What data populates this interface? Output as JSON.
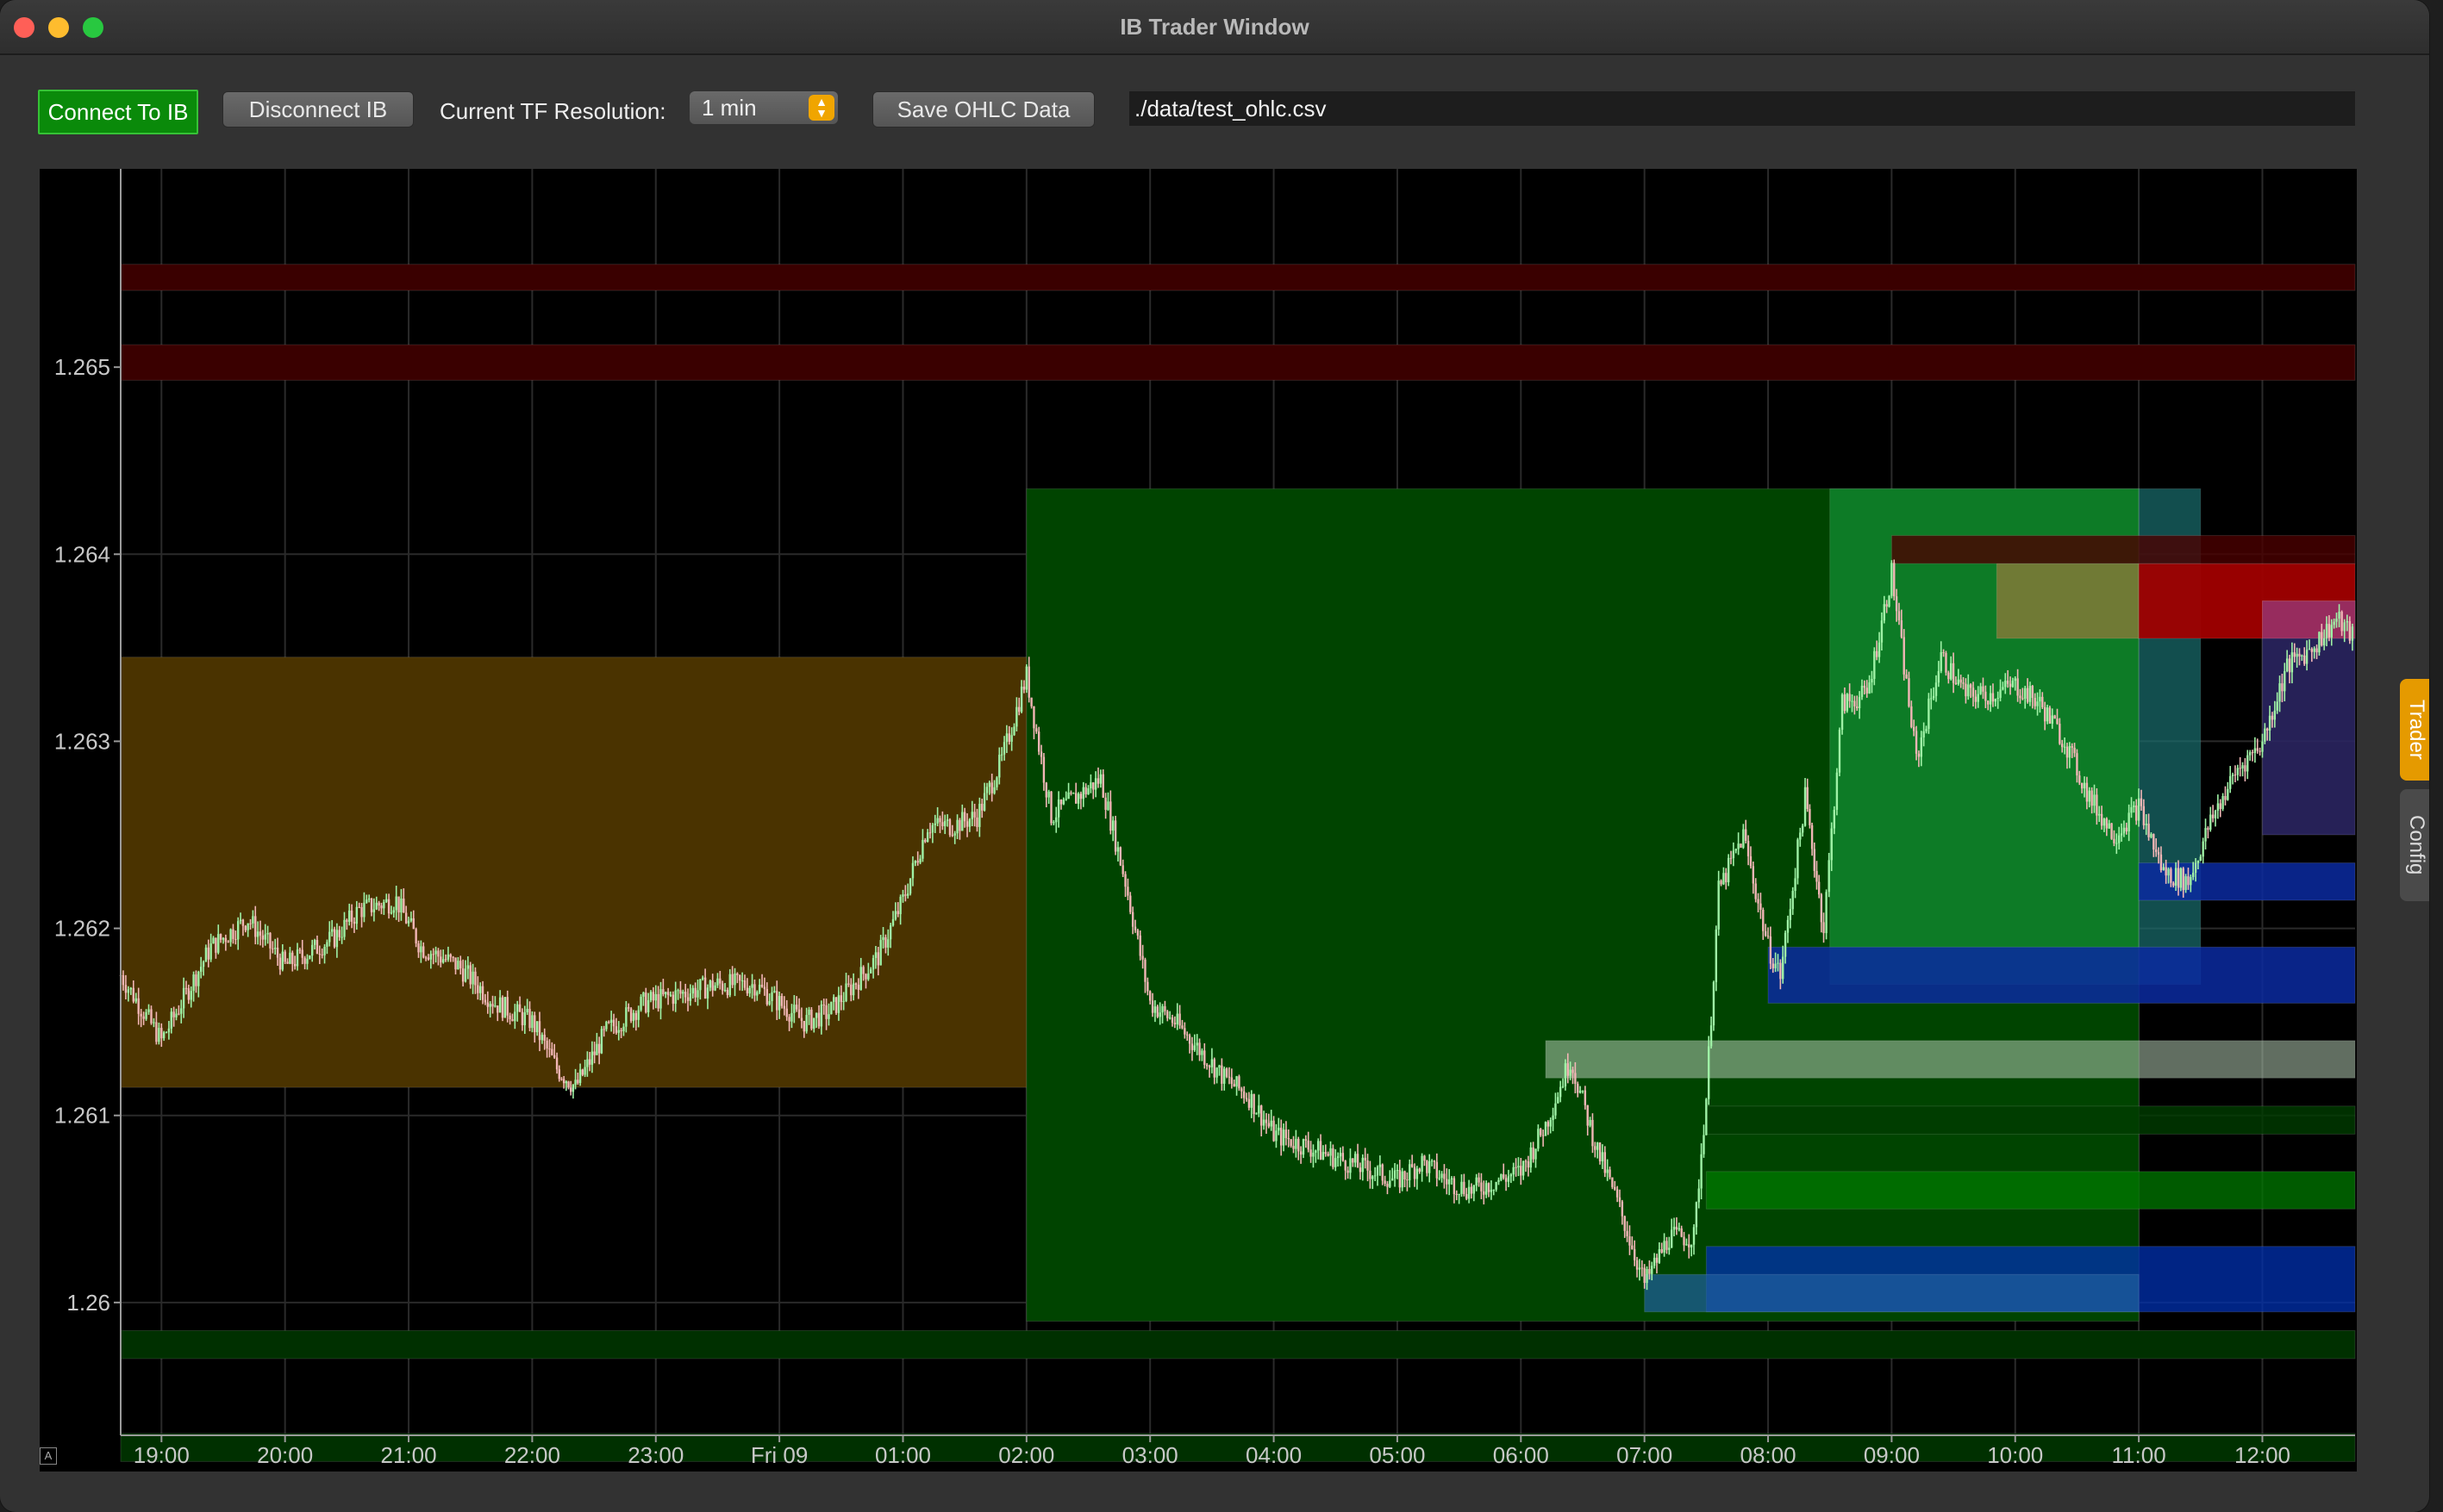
{
  "window": {
    "title": "IB Trader Window"
  },
  "toolbar": {
    "connect_label": "Connect To IB",
    "disconnect_label": "Disconnect IB",
    "tf_label": "Current TF Resolution:",
    "tf_value": "1 min",
    "save_label": "Save OHLC Data",
    "file_path": "./data/test_ohlc.csv"
  },
  "side_tabs": {
    "trader": "Trader",
    "config": "Config"
  },
  "auto_range_glyph": "A",
  "colors": {
    "connect": "#0a8a0a",
    "accent": "#f0a500",
    "candle_up": "#9ff2a6",
    "candle_down": "#f2b6b6"
  },
  "chart_data": {
    "type": "candlestick",
    "x_tick_labels": [
      "19:00",
      "20:00",
      "21:00",
      "22:00",
      "23:00",
      "Fri 09",
      "01:00",
      "02:00",
      "03:00",
      "04:00",
      "05:00",
      "06:00",
      "07:00",
      "08:00",
      "09:00",
      "10:00",
      "11:00",
      "12:00"
    ],
    "x_tick_hours": [
      19,
      20,
      21,
      22,
      23,
      24,
      25,
      26,
      27,
      28,
      29,
      30,
      31,
      32,
      33,
      34,
      35,
      36
    ],
    "x_range_hours": [
      18.67,
      36.75
    ],
    "y_ticks": [
      1.265,
      1.264,
      1.263,
      1.262,
      1.261,
      1.26
    ],
    "y_tick_labels": [
      "1.265",
      "1.264",
      "1.263",
      "1.262",
      "1.261",
      "1.26"
    ],
    "y_range": [
      1.25929,
      1.26606
    ],
    "grid": true,
    "price_path": [
      [
        18.67,
        1.26175
      ],
      [
        19.0,
        1.2614
      ],
      [
        19.4,
        1.2619
      ],
      [
        19.7,
        1.26205
      ],
      [
        20.0,
        1.2618
      ],
      [
        20.4,
        1.26195
      ],
      [
        20.6,
        1.2621
      ],
      [
        20.9,
        1.26215
      ],
      [
        21.1,
        1.2619
      ],
      [
        21.4,
        1.2618
      ],
      [
        21.7,
        1.2616
      ],
      [
        22.0,
        1.2615
      ],
      [
        22.2,
        1.26125
      ],
      [
        22.35,
        1.26115
      ],
      [
        22.6,
        1.26145
      ],
      [
        22.9,
        1.2616
      ],
      [
        23.2,
        1.26165
      ],
      [
        23.5,
        1.2617
      ],
      [
        23.8,
        1.2617
      ],
      [
        24.0,
        1.2616
      ],
      [
        24.2,
        1.2615
      ],
      [
        24.4,
        1.26155
      ],
      [
        24.6,
        1.2617
      ],
      [
        24.8,
        1.26185
      ],
      [
        25.0,
        1.26215
      ],
      [
        25.2,
        1.26255
      ],
      [
        25.4,
        1.26255
      ],
      [
        25.6,
        1.2626
      ],
      [
        25.8,
        1.2629
      ],
      [
        26.0,
        1.26335
      ],
      [
        26.2,
        1.2626
      ],
      [
        26.4,
        1.2627
      ],
      [
        26.6,
        1.2628
      ],
      [
        26.8,
        1.26225
      ],
      [
        27.0,
        1.2616
      ],
      [
        27.2,
        1.2615
      ],
      [
        27.4,
        1.26135
      ],
      [
        27.6,
        1.2612
      ],
      [
        27.8,
        1.2611
      ],
      [
        28.0,
        1.2609
      ],
      [
        28.2,
        1.26085
      ],
      [
        28.4,
        1.2608
      ],
      [
        28.6,
        1.26075
      ],
      [
        28.8,
        1.2607
      ],
      [
        29.0,
        1.26065
      ],
      [
        29.2,
        1.26075
      ],
      [
        29.4,
        1.26065
      ],
      [
        29.6,
        1.2606
      ],
      [
        29.8,
        1.26065
      ],
      [
        30.0,
        1.2607
      ],
      [
        30.2,
        1.26095
      ],
      [
        30.4,
        1.2613
      ],
      [
        30.6,
        1.26085
      ],
      [
        30.8,
        1.2605
      ],
      [
        31.0,
        1.2601
      ],
      [
        31.2,
        1.26035
      ],
      [
        31.4,
        1.26035
      ],
      [
        31.5,
        1.2611
      ],
      [
        31.6,
        1.2622
      ],
      [
        31.8,
        1.2625
      ],
      [
        32.0,
        1.2619
      ],
      [
        32.1,
        1.26175
      ],
      [
        32.3,
        1.2627
      ],
      [
        32.45,
        1.262
      ],
      [
        32.6,
        1.2632
      ],
      [
        32.8,
        1.26325
      ],
      [
        33.0,
        1.2639
      ],
      [
        33.2,
        1.2629
      ],
      [
        33.4,
        1.26345
      ],
      [
        33.6,
        1.26325
      ],
      [
        33.8,
        1.26325
      ],
      [
        34.0,
        1.2633
      ],
      [
        34.2,
        1.2632
      ],
      [
        34.4,
        1.263
      ],
      [
        34.6,
        1.2627
      ],
      [
        34.8,
        1.2625
      ],
      [
        35.0,
        1.26265
      ],
      [
        35.2,
        1.2623
      ],
      [
        35.4,
        1.26225
      ],
      [
        35.6,
        1.2626
      ],
      [
        35.8,
        1.26285
      ],
      [
        36.0,
        1.263
      ],
      [
        36.2,
        1.2634
      ],
      [
        36.4,
        1.2635
      ],
      [
        36.6,
        1.26365
      ],
      [
        36.75,
        1.26355
      ]
    ],
    "zones": [
      {
        "t0": 18.67,
        "t1": 36.75,
        "p0": 1.26541,
        "p1": 1.26555,
        "color": "#3a0000",
        "alpha": 1
      },
      {
        "t0": 18.67,
        "t1": 36.75,
        "p0": 1.26493,
        "p1": 1.26512,
        "color": "#3a0000",
        "alpha": 1
      },
      {
        "t0": 18.67,
        "t1": 26.0,
        "p0": 1.26115,
        "p1": 1.26345,
        "color": "#4a3300",
        "alpha": 1
      },
      {
        "t0": 26.0,
        "t1": 35.0,
        "p0": 1.2599,
        "p1": 1.26435,
        "color": "#004400",
        "alpha": 1
      },
      {
        "t0": 32.5,
        "t1": 35.0,
        "p0": 1.2617,
        "p1": 1.26435,
        "color": "#15a040",
        "alpha": 0.6
      },
      {
        "t0": 35.0,
        "t1": 35.5,
        "p0": 1.2617,
        "p1": 1.26435,
        "color": "#1a6f6f",
        "alpha": 0.7
      },
      {
        "t0": 33.85,
        "t1": 35.0,
        "p0": 1.26355,
        "p1": 1.26395,
        "color": "#8a7a3a",
        "alpha": 0.8
      },
      {
        "t0": 35.0,
        "t1": 36.75,
        "p0": 1.26355,
        "p1": 1.26395,
        "color": "#a00000",
        "alpha": 0.95
      },
      {
        "t0": 33.0,
        "t1": 36.75,
        "p0": 1.26395,
        "p1": 1.2641,
        "color": "#4a0000",
        "alpha": 0.8
      },
      {
        "t0": 36.0,
        "t1": 36.75,
        "p0": 1.2625,
        "p1": 1.26375,
        "color": "#2a2560",
        "alpha": 0.9
      },
      {
        "t0": 36.0,
        "t1": 36.75,
        "p0": 1.26355,
        "p1": 1.26375,
        "color": "#b03060",
        "alpha": 0.8
      },
      {
        "t0": 32.0,
        "t1": 36.75,
        "p0": 1.2616,
        "p1": 1.2619,
        "color": "#0a2aa0",
        "alpha": 0.85
      },
      {
        "t0": 35.0,
        "t1": 36.75,
        "p0": 1.26215,
        "p1": 1.26235,
        "color": "#0a2aa0",
        "alpha": 0.85
      },
      {
        "t0": 30.2,
        "t1": 36.75,
        "p0": 1.2612,
        "p1": 1.2614,
        "color": "#b0c8b0",
        "alpha": 0.55
      },
      {
        "t0": 31.5,
        "t1": 36.75,
        "p0": 1.2605,
        "p1": 1.2607,
        "color": "#007a00",
        "alpha": 0.75
      },
      {
        "t0": 31.5,
        "t1": 36.75,
        "p0": 1.2609,
        "p1": 1.26105,
        "color": "#003c00",
        "alpha": 0.8
      },
      {
        "t0": 31.5,
        "t1": 36.75,
        "p0": 1.25995,
        "p1": 1.2603,
        "color": "#0030b0",
        "alpha": 0.75
      },
      {
        "t0": 31.0,
        "t1": 35.0,
        "p0": 1.25995,
        "p1": 1.26015,
        "color": "#2060a0",
        "alpha": 0.7
      },
      {
        "t0": 18.67,
        "t1": 36.75,
        "p0": 1.2597,
        "p1": 1.25985,
        "color": "#003000",
        "alpha": 1
      },
      {
        "t0": 18.67,
        "t1": 36.75,
        "p0": 1.25915,
        "p1": 1.2593,
        "color": "#003000",
        "alpha": 1
      }
    ]
  }
}
